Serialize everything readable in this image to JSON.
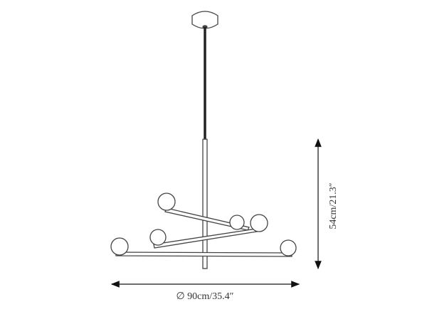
{
  "dimensions": {
    "diameter": "∅ 90cm/35.4″",
    "height": "54cm/21.3″"
  }
}
